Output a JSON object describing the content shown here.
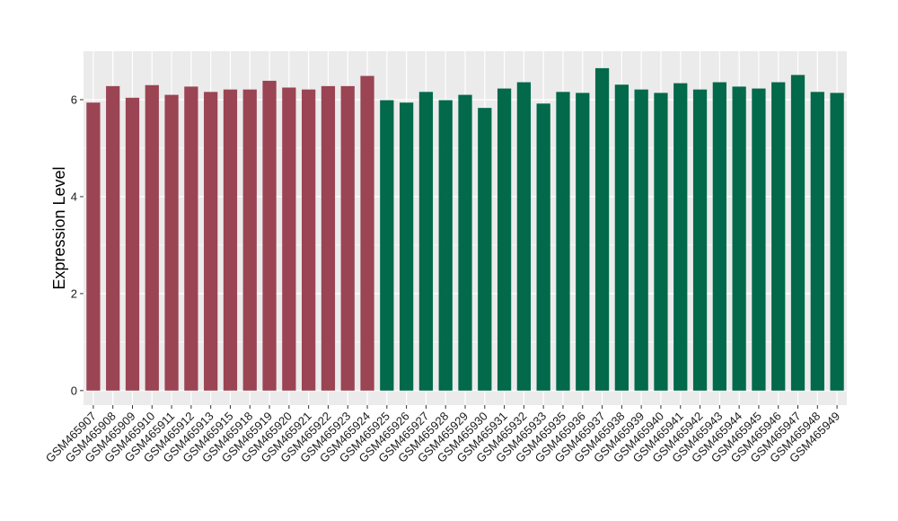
{
  "chart_data": {
    "type": "bar",
    "title": "",
    "xlabel": "",
    "ylabel": "Expression Level",
    "ylim": [
      -0.3,
      7.0
    ],
    "yticks": [
      0,
      2,
      4,
      6
    ],
    "grid": true,
    "legend": "none",
    "background_color": "#ebebeb",
    "grid_color": "#ffffff",
    "colors": {
      "group_a": "#9b4453",
      "group_b": "#02694a"
    },
    "categories": [
      "GSM465907",
      "GSM465908",
      "GSM465909",
      "GSM465910",
      "GSM465911",
      "GSM465912",
      "GSM465913",
      "GSM465915",
      "GSM465918",
      "GSM465919",
      "GSM465920",
      "GSM465921",
      "GSM465922",
      "GSM465923",
      "GSM465924",
      "GSM465925",
      "GSM465926",
      "GSM465927",
      "GSM465928",
      "GSM465929",
      "GSM465930",
      "GSM465931",
      "GSM465932",
      "GSM465933",
      "GSM465935",
      "GSM465936",
      "GSM465937",
      "GSM465938",
      "GSM465939",
      "GSM465940",
      "GSM465941",
      "GSM465942",
      "GSM465943",
      "GSM465944",
      "GSM465945",
      "GSM465946",
      "GSM465947",
      "GSM465948",
      "GSM465949"
    ],
    "values": [
      5.94,
      6.28,
      6.04,
      6.3,
      6.1,
      6.27,
      6.16,
      6.21,
      6.21,
      6.39,
      6.25,
      6.21,
      6.28,
      6.28,
      6.49,
      5.99,
      5.94,
      6.16,
      5.99,
      6.1,
      5.83,
      6.23,
      6.36,
      5.92,
      6.16,
      6.14,
      6.65,
      6.31,
      6.21,
      6.14,
      6.34,
      6.21,
      6.36,
      6.27,
      6.23,
      6.36,
      6.51,
      6.16,
      6.14
    ],
    "bar_groups": [
      "a",
      "a",
      "a",
      "a",
      "a",
      "a",
      "a",
      "a",
      "a",
      "a",
      "a",
      "a",
      "a",
      "a",
      "a",
      "b",
      "b",
      "b",
      "b",
      "b",
      "b",
      "b",
      "b",
      "b",
      "b",
      "b",
      "b",
      "b",
      "b",
      "b",
      "b",
      "b",
      "b",
      "b",
      "b",
      "b",
      "b",
      "b",
      "b"
    ]
  }
}
